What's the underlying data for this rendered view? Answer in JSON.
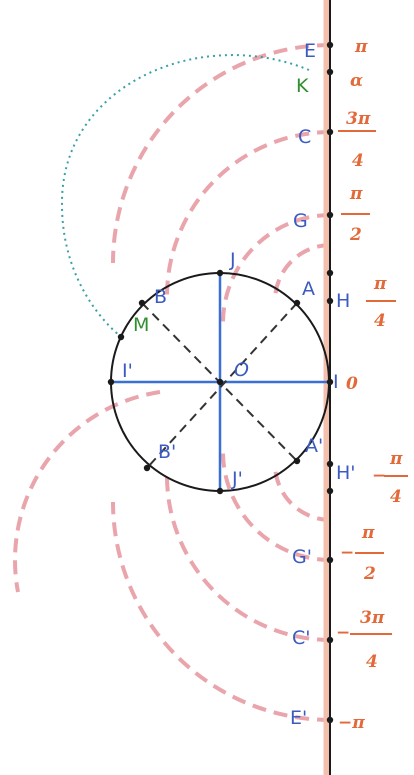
{
  "colors": {
    "axis": "#d9826a",
    "arc": "#d9707a",
    "circle": "#1a1a1a",
    "diameter": "#3a6fd6",
    "diagonal": "#333333",
    "blue_label": "#3b5bbf",
    "green_label": "#2f8f2f",
    "dotted": "#39a0a8",
    "value_label": "#e26a3a"
  },
  "points": {
    "E": "E",
    "K": "K",
    "C": "C",
    "G": "G",
    "A": "A",
    "H": "H",
    "I": "I",
    "H_prime": "H'",
    "A_prime": "A'",
    "G_prime": "G'",
    "C_prime": "C'",
    "E_prime": "E'",
    "B": "B",
    "M": "M",
    "J": "J",
    "I_prime": "I'",
    "O": "O",
    "B_prime": "B'",
    "J_prime": "J'"
  },
  "values": {
    "pi": "π",
    "alpha": "α",
    "three_pi_4_num": "3π",
    "three_pi_4_den": "4",
    "pi_2_num": "π",
    "pi_2_den": "2",
    "pi_4_num": "π",
    "pi_4_den": "4",
    "zero": "0",
    "neg_pi_4_sign": "−",
    "neg_pi_4_num": "π",
    "neg_pi_4_den": "4",
    "neg_pi_2_sign": "−",
    "neg_pi_2_num": "π",
    "neg_pi_2_den": "2",
    "neg_3pi_4_sign": "−",
    "neg_3pi_4_num": "3π",
    "neg_3pi_4_den": "4",
    "neg_pi": "−π"
  }
}
